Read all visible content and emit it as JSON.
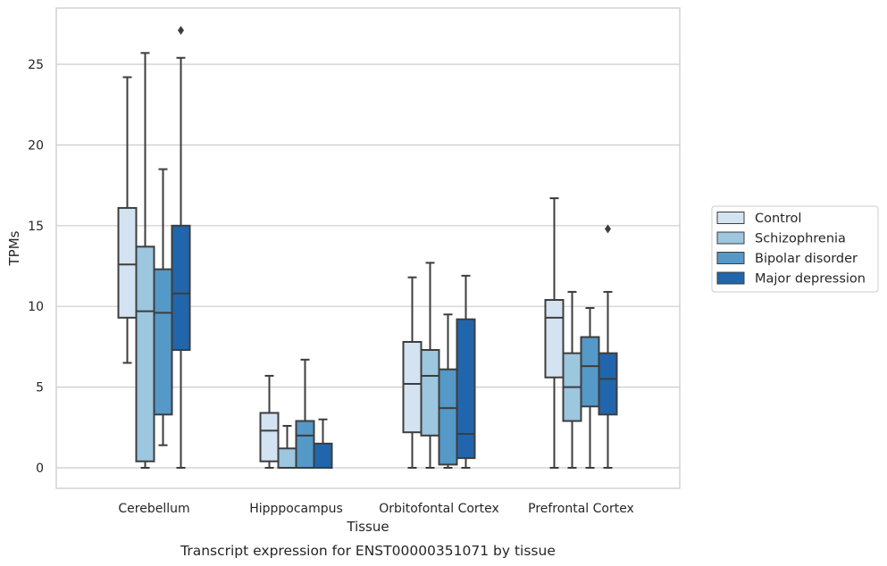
{
  "chart_data": {
    "type": "box",
    "xlabel": "Tissue",
    "ylabel": "TPMs",
    "caption": "Transcript expression for ENST00000351071 by tissue",
    "ylim": [
      -1.3,
      28.2
    ],
    "yticks": [
      0,
      5,
      10,
      15,
      20,
      25
    ],
    "grid": "horizontal",
    "legend_position": "right",
    "categories": [
      "Cerebellum",
      "Hipppocampus",
      "Orbitofontal Cortex",
      "Prefrontal Cortex"
    ],
    "series": [
      {
        "name": "Control",
        "color": "#d3e3f1",
        "boxes": [
          {
            "whisker_low": 6.5,
            "q1": 9.3,
            "median": 12.6,
            "q3": 16.1,
            "whisker_high": 24.2,
            "outliers": []
          },
          {
            "whisker_low": 0.0,
            "q1": 0.4,
            "median": 2.3,
            "q3": 3.4,
            "whisker_high": 5.7,
            "outliers": []
          },
          {
            "whisker_low": 0.0,
            "q1": 2.2,
            "median": 5.2,
            "q3": 7.8,
            "whisker_high": 11.8,
            "outliers": []
          },
          {
            "whisker_low": 0.0,
            "q1": 5.6,
            "median": 9.3,
            "q3": 10.4,
            "whisker_high": 16.7,
            "outliers": []
          }
        ]
      },
      {
        "name": "Schizophrenia",
        "color": "#9dc6df",
        "boxes": [
          {
            "whisker_low": 0.0,
            "q1": 0.4,
            "median": 9.7,
            "q3": 13.7,
            "whisker_high": 25.7,
            "outliers": []
          },
          {
            "whisker_low": 0.0,
            "q1": 0.0,
            "median": 0.0,
            "q3": 1.2,
            "whisker_high": 2.6,
            "outliers": []
          },
          {
            "whisker_low": 0.0,
            "q1": 2.0,
            "median": 5.7,
            "q3": 7.3,
            "whisker_high": 12.7,
            "outliers": []
          },
          {
            "whisker_low": 0.0,
            "q1": 2.9,
            "median": 5.0,
            "q3": 7.1,
            "whisker_high": 10.9,
            "outliers": []
          }
        ]
      },
      {
        "name": "Bipolar disorder",
        "color": "#5499c7",
        "boxes": [
          {
            "whisker_low": 1.4,
            "q1": 3.3,
            "median": 9.6,
            "q3": 12.3,
            "whisker_high": 18.5,
            "outliers": []
          },
          {
            "whisker_low": 0.0,
            "q1": 0.0,
            "median": 2.0,
            "q3": 2.9,
            "whisker_high": 6.7,
            "outliers": []
          },
          {
            "whisker_low": 0.0,
            "q1": 0.2,
            "median": 3.7,
            "q3": 6.1,
            "whisker_high": 9.5,
            "outliers": []
          },
          {
            "whisker_low": 0.0,
            "q1": 3.8,
            "median": 6.3,
            "q3": 8.1,
            "whisker_high": 9.9,
            "outliers": []
          }
        ]
      },
      {
        "name": "Major depression",
        "color": "#2166ac",
        "boxes": [
          {
            "whisker_low": 0.0,
            "q1": 7.3,
            "median": 10.8,
            "q3": 15.0,
            "whisker_high": 25.4,
            "outliers": [
              27.1
            ]
          },
          {
            "whisker_low": 0.0,
            "q1": 0.0,
            "median": 0.0,
            "q3": 1.5,
            "whisker_high": 3.0,
            "outliers": []
          },
          {
            "whisker_low": 0.0,
            "q1": 0.6,
            "median": 2.1,
            "q3": 9.2,
            "whisker_high": 11.9,
            "outliers": []
          },
          {
            "whisker_low": 0.0,
            "q1": 3.3,
            "median": 5.5,
            "q3": 7.1,
            "whisker_high": 10.9,
            "outliers": [
              14.8
            ]
          }
        ]
      }
    ]
  }
}
